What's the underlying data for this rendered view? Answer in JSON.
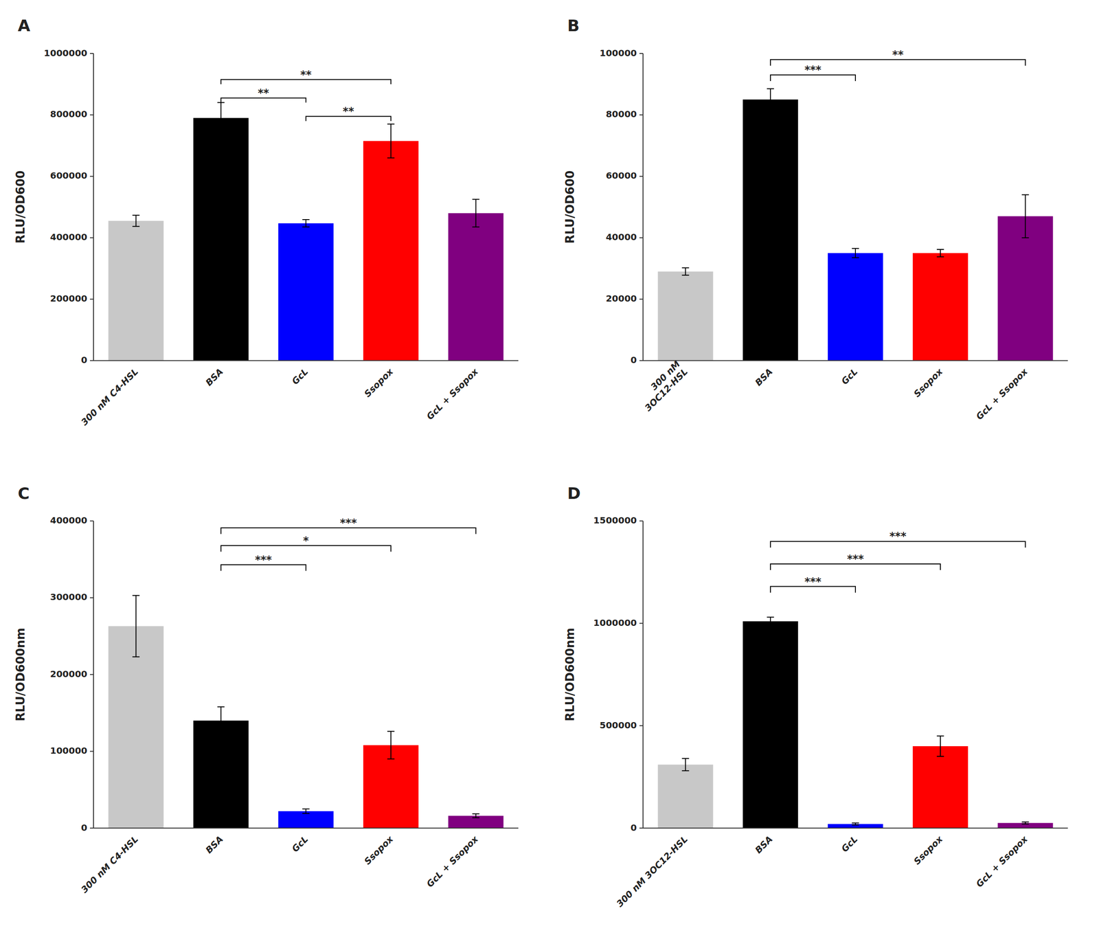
{
  "chart_data": [
    {
      "type": "bar",
      "title": "A",
      "categories": [
        "300 nM C4-HSL",
        "BSA",
        "GcL",
        "Ssopox",
        "GcL + Ssopox"
      ],
      "values": [
        455000,
        790000,
        447000,
        715000,
        480000
      ],
      "errors": [
        18000,
        50000,
        12000,
        55000,
        45000
      ],
      "colors": [
        "#c8c8c8",
        "#000000",
        "#0000ff",
        "#ff0000",
        "#800080"
      ],
      "ylabel": "RLU/OD600",
      "ylim": [
        0,
        1000000
      ],
      "yticks": [
        0,
        200000,
        400000,
        600000,
        800000,
        1000000
      ],
      "significance": [
        {
          "x1": 1,
          "x2": 2,
          "y": 840000,
          "offset": 15000,
          "label": "**"
        },
        {
          "x1": 1,
          "x2": 3,
          "y": 900000,
          "offset": 15000,
          "label": "**"
        },
        {
          "x1": 2,
          "x2": 3,
          "y": 780000,
          "offset": 15000,
          "label": "**"
        }
      ]
    },
    {
      "type": "bar",
      "title": "B",
      "categories": [
        "300 nM\n3OC12-HSL",
        "BSA",
        "GcL",
        "Ssopox",
        "GcL + Ssopox"
      ],
      "values": [
        29000,
        85000,
        35000,
        35000,
        47000
      ],
      "errors": [
        1200,
        3500,
        1500,
        1200,
        7000
      ],
      "colors": [
        "#c8c8c8",
        "#000000",
        "#0000ff",
        "#ff0000",
        "#800080"
      ],
      "ylabel": "RLU/OD600",
      "ylim": [
        0,
        100000
      ],
      "yticks": [
        0,
        20000,
        40000,
        60000,
        80000,
        100000
      ],
      "significance": [
        {
          "x1": 1,
          "x2": 2,
          "y": 91000,
          "offset": 2000,
          "label": "***"
        },
        {
          "x1": 1,
          "x2": 4,
          "y": 96000,
          "offset": 2000,
          "label": "**"
        }
      ]
    },
    {
      "type": "bar",
      "title": "C",
      "categories": [
        "300 nM C4-HSL",
        "BSA",
        "GcL",
        "Ssopox",
        "GcL + Ssopox"
      ],
      "values": [
        263000,
        140000,
        22000,
        108000,
        16000
      ],
      "errors": [
        40000,
        18000,
        3000,
        18000,
        2500
      ],
      "colors": [
        "#c8c8c8",
        "#000000",
        "#0000ff",
        "#ff0000",
        "#800080"
      ],
      "ylabel": "RLU/OD600nm",
      "ylim": [
        0,
        400000
      ],
      "yticks": [
        0,
        100000,
        200000,
        300000,
        400000
      ],
      "significance": [
        {
          "x1": 1,
          "x2": 2,
          "y": 335000,
          "offset": 8000,
          "label": "***"
        },
        {
          "x1": 1,
          "x2": 3,
          "y": 360000,
          "offset": 8000,
          "label": "*"
        },
        {
          "x1": 1,
          "x2": 4,
          "y": 383000,
          "offset": 8000,
          "label": "***"
        }
      ]
    },
    {
      "type": "bar",
      "title": "D",
      "categories": [
        "300 nM 3OC12-HSL",
        "BSA",
        "GcL",
        "Ssopox",
        "GcL + Ssopox"
      ],
      "values": [
        310000,
        1010000,
        20000,
        400000,
        25000
      ],
      "errors": [
        30000,
        20000,
        5000,
        50000,
        5000
      ],
      "colors": [
        "#c8c8c8",
        "#000000",
        "#0000ff",
        "#ff0000",
        "#800080"
      ],
      "ylabel": "RLU/OD600nm",
      "ylim": [
        0,
        1500000
      ],
      "yticks": [
        0,
        500000,
        1000000,
        1500000
      ],
      "significance": [
        {
          "x1": 1,
          "x2": 2,
          "y": 1150000,
          "offset": 30000,
          "label": "***"
        },
        {
          "x1": 1,
          "x2": 3,
          "y": 1260000,
          "offset": 30000,
          "label": "***"
        },
        {
          "x1": 1,
          "x2": 4,
          "y": 1370000,
          "offset": 30000,
          "label": "***"
        }
      ]
    }
  ]
}
